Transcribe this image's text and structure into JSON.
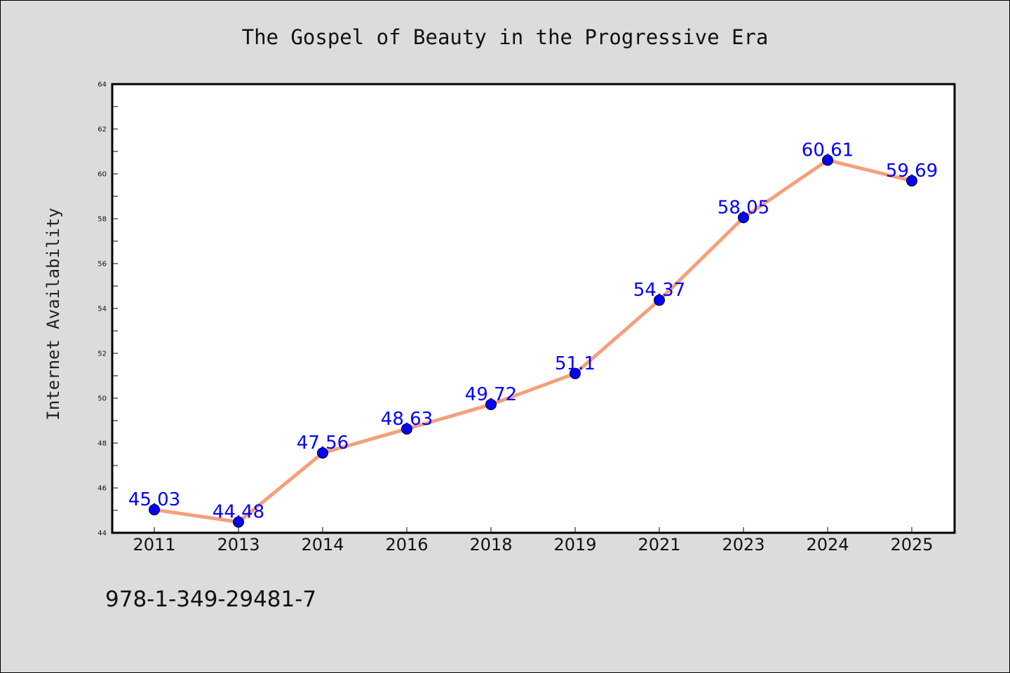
{
  "chart_data": {
    "type": "line",
    "title": "The Gospel of Beauty in the Progressive Era",
    "xlabel": "",
    "ylabel": "Internet Availability",
    "categories": [
      "2011",
      "2013",
      "2014",
      "2016",
      "2018",
      "2019",
      "2021",
      "2023",
      "2024",
      "2025"
    ],
    "series": [
      {
        "values": [
          45.03,
          44.48,
          47.56,
          48.63,
          49.72,
          51.1,
          54.37,
          58.05,
          60.61,
          59.69
        ],
        "data_labels": [
          "45.03",
          "44.48",
          "47.56",
          "48.63",
          "49.72",
          "51.1",
          "54.37",
          "58.05",
          "60.61",
          "59.69"
        ],
        "line_color": "#f4a07c",
        "marker_color": "#0000ff"
      }
    ],
    "ylim": [
      44,
      64
    ],
    "yticks": [
      "44",
      "46",
      "48",
      "50",
      "52",
      "54",
      "56",
      "58",
      "60",
      "62",
      "64"
    ],
    "grid": false,
    "legend": "none"
  },
  "footer": {
    "isbn": "978-1-349-29481-7"
  },
  "colors": {
    "background": "#dcdcdc",
    "plot_background": "#ffffff",
    "axis": "#000000",
    "label_color": "#0000ff"
  }
}
